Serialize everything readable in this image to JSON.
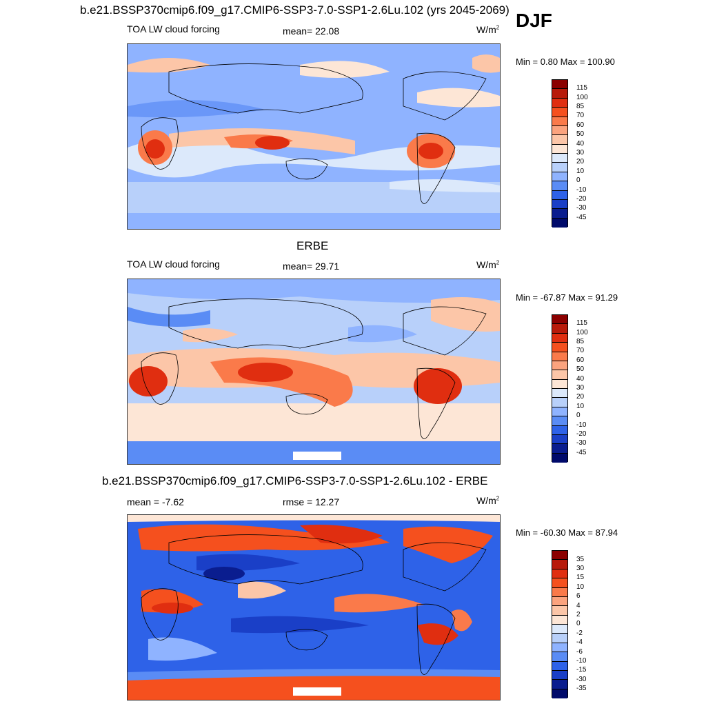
{
  "header": {
    "title": "b.e21.BSSP370cmip6.f09_g17.CMIP6-SSP3-7.0-SSP1-2.6Lu.102 (yrs 2045-2069)",
    "season": "DJF"
  },
  "panels": [
    {
      "title": "",
      "left_label": "TOA LW cloud forcing",
      "center_label": "mean=  22.08",
      "units": "W/m",
      "units_sup": "2",
      "minmax": "Min =   0.80 Max = 100.90",
      "levels": [
        "115",
        "100",
        "85",
        "70",
        "60",
        "50",
        "40",
        "30",
        "20",
        "10",
        "0",
        "-10",
        "-20",
        "-30",
        "-45"
      ]
    },
    {
      "title": "ERBE",
      "left_label": "TOA LW cloud forcing",
      "center_label": "mean=  29.71",
      "units": "W/m",
      "units_sup": "2",
      "minmax": "Min = -67.87 Max =  91.29",
      "levels": [
        "115",
        "100",
        "85",
        "70",
        "60",
        "50",
        "40",
        "30",
        "20",
        "10",
        "0",
        "-10",
        "-20",
        "-30",
        "-45"
      ]
    },
    {
      "title": "b.e21.BSSP370cmip6.f09_g17.CMIP6-SSP3-7.0-SSP1-2.6Lu.102 - ERBE",
      "left_label": "mean =  -7.62",
      "center_label": "rmse =  12.27",
      "units": "W/m",
      "units_sup": "2",
      "minmax": "Min = -60.30 Max =  87.94",
      "levels": [
        "35",
        "30",
        "15",
        "10",
        "6",
        "4",
        "2",
        "0",
        "-2",
        "-4",
        "-6",
        "-10",
        "-15",
        "-30",
        "-35"
      ]
    }
  ],
  "colorbar_colors": [
    "#8b0000",
    "#b81a0a",
    "#e02e10",
    "#f5501e",
    "#fa7a4a",
    "#fba37e",
    "#fcc6a8",
    "#fde6d6",
    "#dce9fb",
    "#b8d0fa",
    "#8fb3ff",
    "#5a8cf5",
    "#2e62e8",
    "#1a3fc7",
    "#0a1d8f",
    "#000a6b"
  ]
}
